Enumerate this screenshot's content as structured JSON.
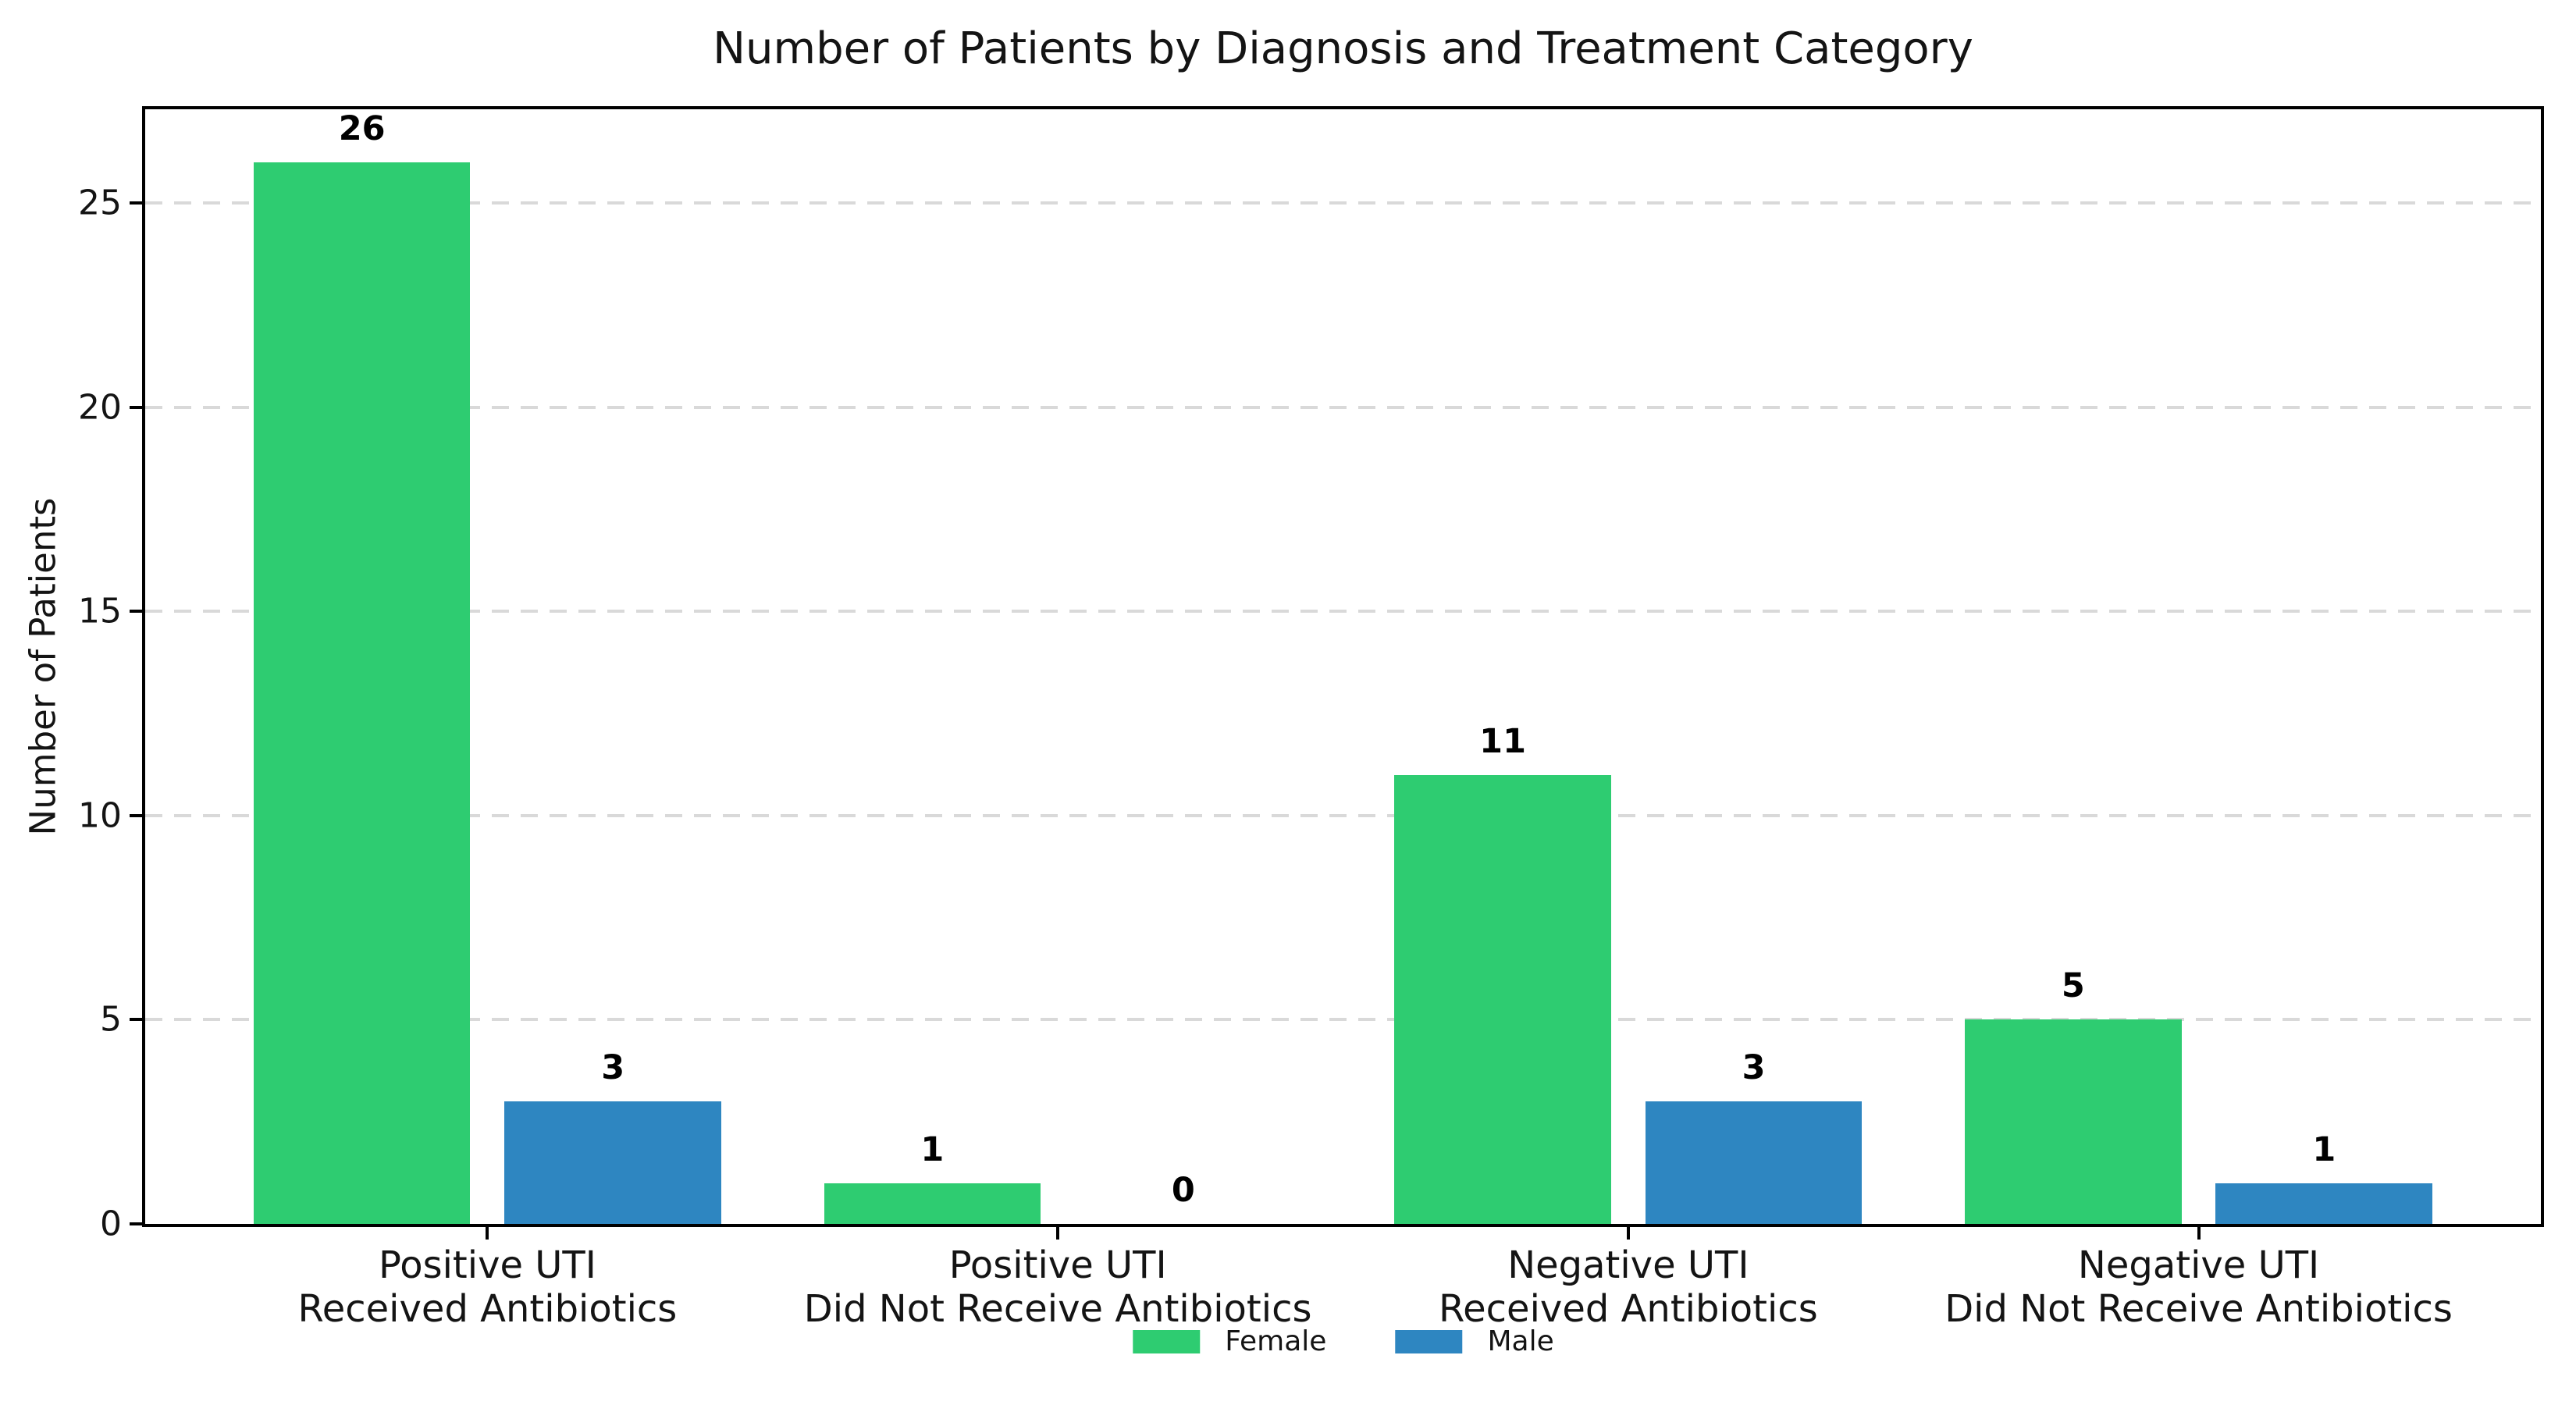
{
  "chart_data": {
    "type": "bar",
    "title": "Number of Patients by Diagnosis and Treatment Category",
    "ylabel": "Number of Patients",
    "xlabel": "",
    "categories": [
      "Positive UTI\nReceived Antibiotics",
      "Positive UTI\nDid Not Receive Antibiotics",
      "Negative UTI\nReceived Antibiotics",
      "Negative UTI\nDid Not Receive Antibiotics"
    ],
    "series": [
      {
        "name": "Female",
        "color": "#2ecc71",
        "values": [
          26,
          1,
          11,
          5
        ]
      },
      {
        "name": "Male",
        "color": "#2e86c1",
        "values": [
          3,
          0,
          3,
          1
        ]
      }
    ],
    "value_labels": [
      [
        "26",
        "1",
        "11",
        "5"
      ],
      [
        "3",
        "0",
        "3",
        "1"
      ]
    ],
    "yticks": [
      0,
      5,
      10,
      15,
      20,
      25
    ],
    "ylim": [
      0,
      27.3
    ],
    "grid": {
      "axis": "y",
      "style": "dashed",
      "color": "#d9d9d9"
    },
    "legend": {
      "position": "bottom-center",
      "entries": [
        "Female",
        "Male"
      ]
    },
    "spine_color": "#000000",
    "background": "#ffffff"
  }
}
